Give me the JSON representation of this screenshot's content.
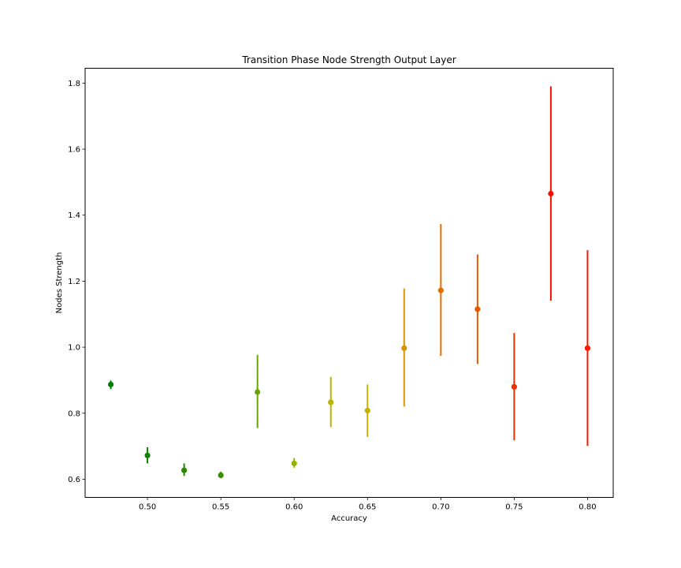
{
  "chart_data": {
    "type": "scatter",
    "title": "Transition Phase Node Strength Output Layer",
    "xlabel": "Accuracy",
    "ylabel": "Nodes Strength",
    "xlim": [
      0.4575,
      0.8175
    ],
    "ylim": [
      0.545,
      1.845
    ],
    "xticks": [
      0.5,
      0.55,
      0.6,
      0.65,
      0.7,
      0.75,
      0.8
    ],
    "xtick_labels": [
      "0.50",
      "0.55",
      "0.60",
      "0.65",
      "0.70",
      "0.75",
      "0.80"
    ],
    "yticks": [
      0.6,
      0.8,
      1.0,
      1.2,
      1.4,
      1.6,
      1.8
    ],
    "ytick_labels": [
      "0.6",
      "0.8",
      "1.0",
      "1.2",
      "1.4",
      "1.6",
      "1.8"
    ],
    "grid": false,
    "legend": "none",
    "points": [
      {
        "x": 0.475,
        "y": 0.887,
        "err_low": 0.873,
        "err_high": 0.899,
        "color": "#008000"
      },
      {
        "x": 0.5,
        "y": 0.672,
        "err_low": 0.648,
        "err_high": 0.697,
        "color": "#128000"
      },
      {
        "x": 0.525,
        "y": 0.627,
        "err_low": 0.61,
        "err_high": 0.648,
        "color": "#248800"
      },
      {
        "x": 0.55,
        "y": 0.612,
        "err_low": 0.603,
        "err_high": 0.623,
        "color": "#3c9000"
      },
      {
        "x": 0.575,
        "y": 0.864,
        "err_low": 0.755,
        "err_high": 0.977,
        "color": "#6aa400"
      },
      {
        "x": 0.6,
        "y": 0.648,
        "err_low": 0.635,
        "err_high": 0.664,
        "color": "#98b000"
      },
      {
        "x": 0.625,
        "y": 0.833,
        "err_low": 0.758,
        "err_high": 0.91,
        "color": "#b8b400"
      },
      {
        "x": 0.65,
        "y": 0.808,
        "err_low": 0.728,
        "err_high": 0.887,
        "color": "#c8b000"
      },
      {
        "x": 0.675,
        "y": 0.997,
        "err_low": 0.82,
        "err_high": 1.178,
        "color": "#d89400"
      },
      {
        "x": 0.7,
        "y": 1.172,
        "err_low": 0.974,
        "err_high": 1.373,
        "color": "#e07000"
      },
      {
        "x": 0.725,
        "y": 1.115,
        "err_low": 0.949,
        "err_high": 1.281,
        "color": "#e85800"
      },
      {
        "x": 0.75,
        "y": 0.88,
        "err_low": 0.718,
        "err_high": 1.043,
        "color": "#ee3000"
      },
      {
        "x": 0.775,
        "y": 1.465,
        "err_low": 1.141,
        "err_high": 1.79,
        "color": "#f41000"
      },
      {
        "x": 0.8,
        "y": 0.997,
        "err_low": 0.701,
        "err_high": 1.294,
        "color": "#fa1800"
      }
    ]
  }
}
